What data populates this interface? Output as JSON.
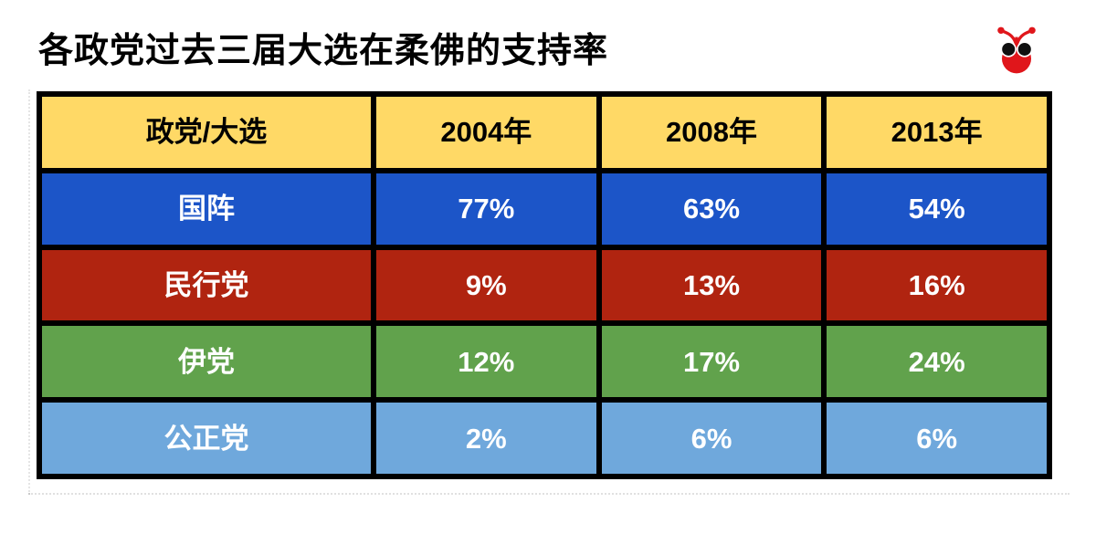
{
  "page": {
    "title": "各政党过去三届大选在柔佛的支持率"
  },
  "colors": {
    "header_bg": "#FFD966",
    "border": "#000000",
    "header_text": "#000000",
    "cell_text": "#FFFFFF",
    "logo_red": "#E0161B",
    "row_barisan_blue": "#1C55C8",
    "row_dap_red": "#B02410",
    "row_pas_green": "#61A24C",
    "row_pkr_blue": "#6FA8DC"
  },
  "chart_data": {
    "type": "table",
    "title": "各政党过去三届大选在柔佛的支持率",
    "columns": [
      "政党/大选",
      "2004年",
      "2008年",
      "2013年"
    ],
    "rows": [
      {
        "party": "国阵",
        "values": [
          "77%",
          "63%",
          "54%"
        ],
        "values_numeric": [
          77,
          63,
          54
        ],
        "color": "#1C55C8"
      },
      {
        "party": "民行党",
        "values": [
          "9%",
          "13%",
          "16%"
        ],
        "values_numeric": [
          9,
          13,
          16
        ],
        "color": "#B02410"
      },
      {
        "party": "伊党",
        "values": [
          "12%",
          "17%",
          "24%"
        ],
        "values_numeric": [
          12,
          17,
          24
        ],
        "color": "#61A24C"
      },
      {
        "party": "公正党",
        "values": [
          "2%",
          "6%",
          "6%"
        ],
        "values_numeric": [
          2,
          6,
          6
        ],
        "color": "#6FA8DC"
      }
    ],
    "unit": "%",
    "legend": "none",
    "grid": "black heavy borders",
    "header_style": "yellow background, black bold text",
    "row_style": "colored background, white bold text"
  }
}
